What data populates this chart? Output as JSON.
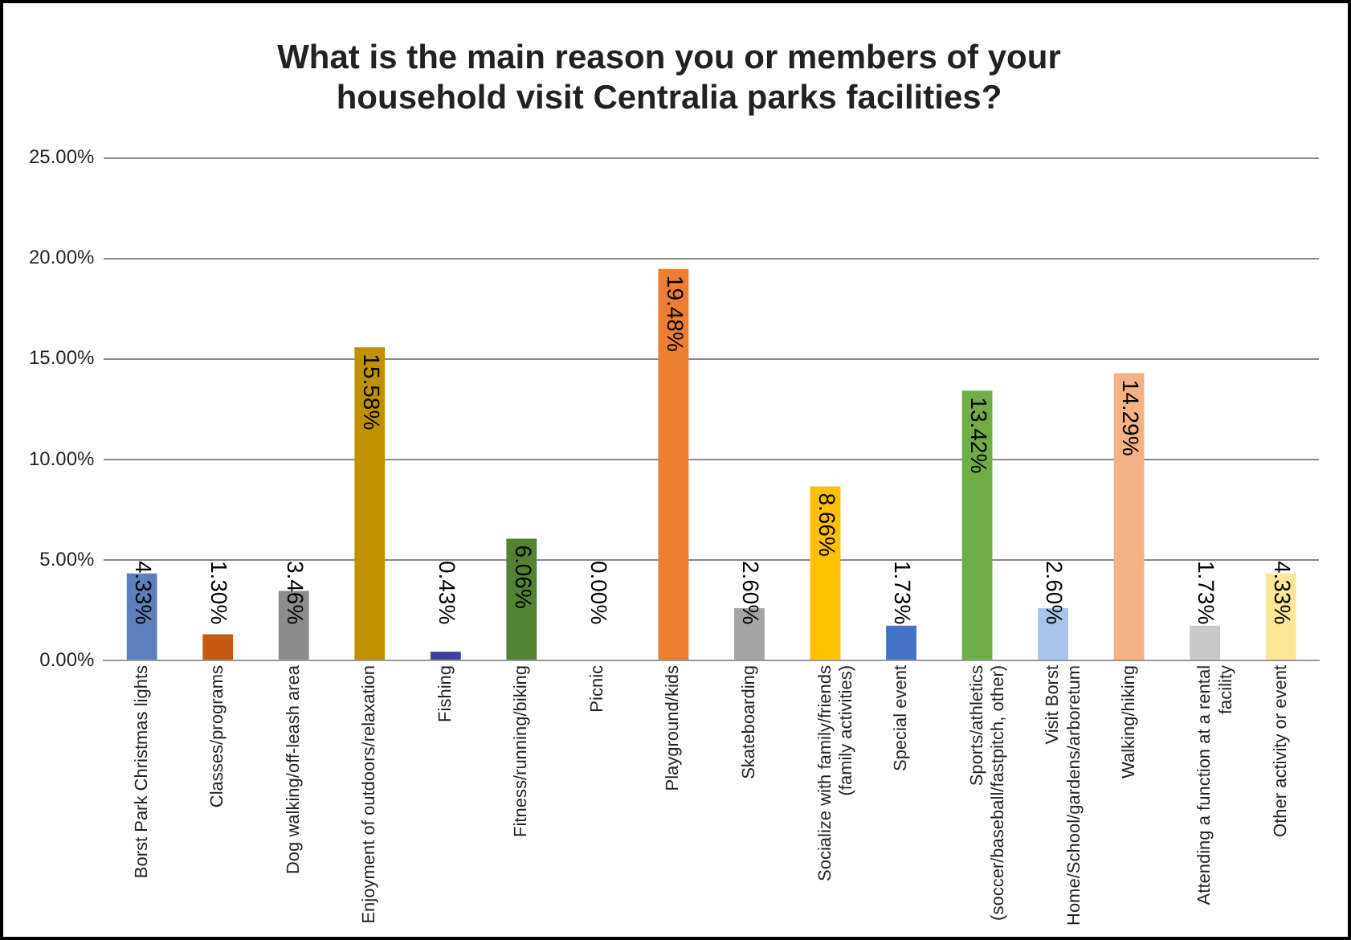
{
  "chart_data": {
    "type": "bar",
    "title": "What is the main reason you or members of your\nhousehold visit Centralia parks facilities?",
    "categories": [
      "Borst Park Christmas lights",
      "Classes/programs",
      "Dog walking/off-leash area",
      "Enjoyment of outdoors/relaxation",
      "Fishing",
      "Fitness/running/biking",
      "Picnic",
      "Playground/kids",
      "Skateboarding",
      "Socialize with family/friends\n(family activities)",
      "Special event",
      "Sports/athletics\n(soccer/baseball/fastpitch, other)",
      "Visit Borst\nHome/School/gardens/arboretum",
      "Walking/hiking",
      "Attending a function at a rental\nfacility",
      "Other activity or event"
    ],
    "values": [
      4.33,
      1.3,
      3.46,
      15.58,
      0.43,
      6.06,
      0.0,
      19.48,
      2.6,
      8.66,
      1.73,
      13.42,
      2.6,
      14.29,
      1.73,
      4.33
    ],
    "value_labels": [
      "4.33%",
      "1.30%",
      "3.46%",
      "15.58%",
      "0.43%",
      "6.06%",
      "0.00%",
      "19.48%",
      "2.60%",
      "8.66%",
      "1.73%",
      "13.42%",
      "2.60%",
      "14.29%",
      "1.73%",
      "4.33%"
    ],
    "colors": [
      "#5b80bd",
      "#c55a11",
      "#8c8c8c",
      "#bf9000",
      "#3f3f9f",
      "#548235",
      "#7f7f7f",
      "#ed7d31",
      "#a5a5a5",
      "#ffc000",
      "#4472c4",
      "#70ad47",
      "#a9c4eb",
      "#f4b183",
      "#c9c9c9",
      "#ffe699"
    ],
    "ylim": [
      0,
      25
    ],
    "yticks": [
      {
        "value": 0,
        "label": "0.00%"
      },
      {
        "value": 5,
        "label": "5.00%"
      },
      {
        "value": 10,
        "label": "10.00%"
      },
      {
        "value": 15,
        "label": "15.00%"
      },
      {
        "value": 20,
        "label": "20.00%"
      },
      {
        "value": 25,
        "label": "25.00%"
      }
    ],
    "grid": "y",
    "legend": false
  }
}
